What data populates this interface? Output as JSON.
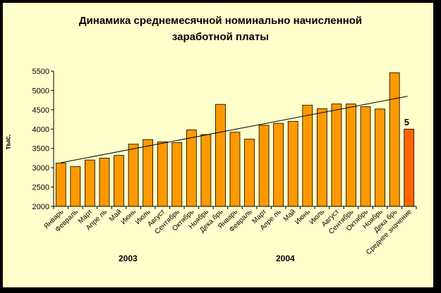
{
  "title": "Динамика среднемесячной номинально начисленной\nзаработной платы",
  "ylabel": "тыс.",
  "year_labels": [
    "2003",
    "2004"
  ],
  "colors": {
    "bar": "#ff9900",
    "bar_highlight": "#ff6600",
    "plot_bg": "#ffffcc",
    "frame": "#000000",
    "trend": "#000000"
  },
  "chart_data": {
    "type": "bar",
    "title": "Динамика среднемесячной номинально начисленной заработной платы",
    "xlabel": "",
    "ylabel": "тыс.",
    "ylim": [
      2000,
      5500
    ],
    "yticks": [
      2000,
      2500,
      3000,
      3500,
      4000,
      4500,
      5000,
      5500
    ],
    "grid": false,
    "categories": [
      "Январь",
      "Февраль",
      "Март",
      "Апрель",
      "Май",
      "Июнь",
      "Июль",
      "Август",
      "Сентябрь",
      "Октябрь",
      "Ноябрь",
      "Декабрь",
      "Январь",
      "Февраль",
      "Март",
      "Апрель",
      "Май",
      "Июнь",
      "Июль",
      "Август",
      "Сентябрь",
      "Октябрь",
      "Ноябрь",
      "Декабрь",
      "Среднее значение"
    ],
    "tick_labels": [
      "Январь",
      "Февраль",
      "Март",
      "Апре ль",
      "Май",
      "Июнь",
      "Июль",
      "Август",
      "Сентябрь",
      "Октябрь",
      "Ноябрь",
      "Дека брь",
      "Январь",
      "Февраль",
      "Март",
      "Апре ль",
      "Май",
      "Июнь",
      "Июль",
      "Август",
      "Сентябрь",
      "Октябрь",
      "Ноябрь",
      "Дека брь",
      "Среднее значение"
    ],
    "years": [
      {
        "label": "2003",
        "from": 0,
        "to": 11
      },
      {
        "label": "2004",
        "from": 12,
        "to": 23
      }
    ],
    "series": [
      {
        "values": [
          3120,
          3030,
          3200,
          3250,
          3320,
          3610,
          3730,
          3670,
          3650,
          3980,
          3860,
          4640,
          3920,
          3740,
          4100,
          4150,
          4200,
          4620,
          4530,
          4650,
          4650,
          4580,
          4520,
          5460,
          4000
        ],
        "highlight_index": 24
      }
    ],
    "trendline": {
      "type": "linear",
      "start": 3130,
      "end": 4850
    },
    "annotations": [
      "5"
    ]
  }
}
